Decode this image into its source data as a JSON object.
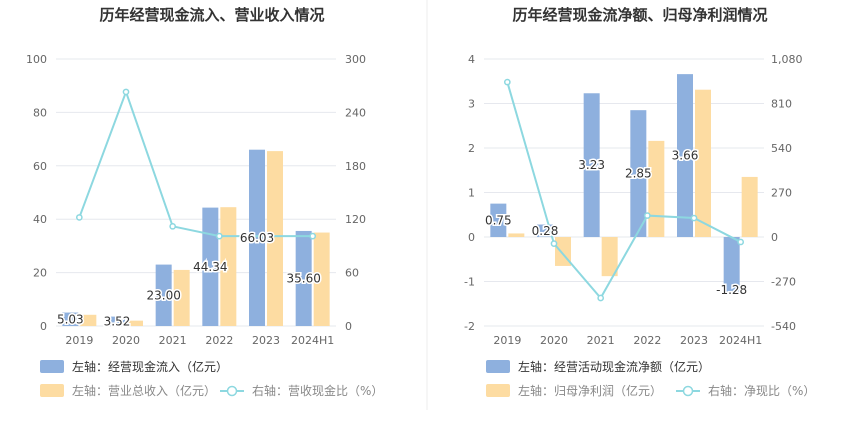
{
  "colors": {
    "bar_primary": "#8eb0de",
    "bar_secondary": "#fddca2",
    "line": "#8dd8e0",
    "grid": "#e6e8ee",
    "tick_text": "#666666",
    "title_text": "#333333",
    "divider": "#eeeeee"
  },
  "chart_data": [
    {
      "type": "bar",
      "title": "历年经营现金流入、营业收入情况",
      "categories": [
        "2019",
        "2020",
        "2021",
        "2022",
        "2023",
        "2024H1"
      ],
      "left_axis": {
        "ylim": [
          0,
          100
        ],
        "ticks": [
          "0",
          "20",
          "40",
          "60",
          "80",
          "100"
        ]
      },
      "right_axis": {
        "ylim": [
          0,
          300
        ],
        "ticks": [
          "0",
          "60",
          "120",
          "180",
          "240",
          "300"
        ]
      },
      "series": [
        {
          "name": "左轴：经营现金流入（亿元）",
          "kind": "bar",
          "axis": "left",
          "values": [
            5.03,
            3.52,
            23.0,
            44.34,
            66.03,
            35.6
          ],
          "labels": [
            "5.03",
            "3.52",
            "23.00",
            "44.34",
            "66.03",
            "35.60"
          ]
        },
        {
          "name": "左轴：营业总收入（亿元）",
          "kind": "bar",
          "axis": "left",
          "values": [
            4.2,
            2.0,
            21.0,
            44.5,
            65.5,
            35.0
          ]
        },
        {
          "name": "右轴：营收现金比（%）",
          "kind": "line",
          "axis": "right",
          "values": [
            122,
            263,
            112,
            101,
            101,
            101
          ]
        }
      ],
      "legend_position": "bottom-left",
      "grid": true
    },
    {
      "type": "bar",
      "title": "历年经营现金流净额、归母净利润情况",
      "categories": [
        "2019",
        "2020",
        "2021",
        "2022",
        "2023",
        "2024H1"
      ],
      "left_axis": {
        "ylim": [
          -2,
          4
        ],
        "ticks": [
          "-2",
          "-1",
          "0",
          "1",
          "2",
          "3",
          "4"
        ]
      },
      "right_axis": {
        "ylim": [
          -540,
          1080
        ],
        "ticks": [
          "-540",
          "-270",
          "0",
          "270",
          "540",
          "810",
          "1,080"
        ]
      },
      "series": [
        {
          "name": "左轴：经营活动现金流净额（亿元）",
          "kind": "bar",
          "axis": "left",
          "values": [
            0.75,
            0.28,
            3.23,
            2.85,
            3.66,
            -1.28
          ],
          "labels": [
            "0.75",
            "0.28",
            "3.23",
            "2.85",
            "3.66",
            "-1.28"
          ]
        },
        {
          "name": "左轴：归母净利润（亿元）",
          "kind": "bar",
          "axis": "left",
          "values": [
            0.08,
            -0.65,
            -0.88,
            2.16,
            3.31,
            1.35
          ]
        },
        {
          "name": "右轴：净现比（%）",
          "kind": "line",
          "axis": "right",
          "values": [
            940,
            -40,
            -370,
            130,
            115,
            -30
          ]
        }
      ],
      "legend_position": "bottom-left",
      "grid": true
    }
  ]
}
